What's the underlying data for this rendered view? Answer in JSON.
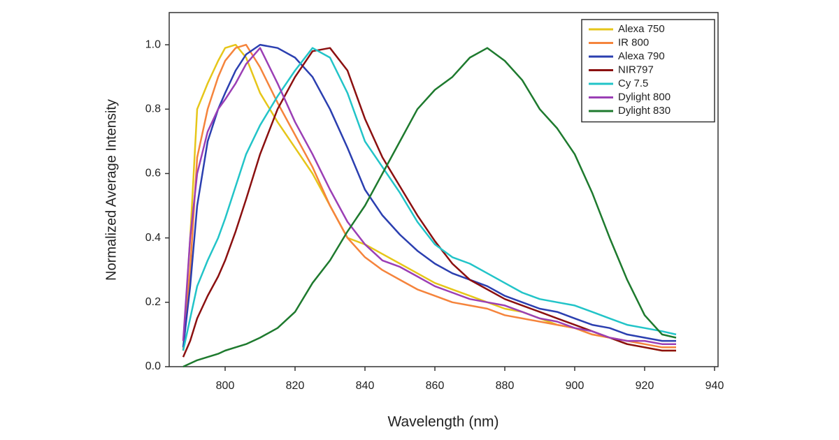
{
  "chart_data": {
    "type": "line",
    "xlabel": "Wavelength (nm)",
    "ylabel": "Normalized Average Intensity",
    "x": [
      788,
      790,
      792,
      795,
      798,
      800,
      803,
      806,
      810,
      815,
      820,
      825,
      830,
      835,
      840,
      845,
      850,
      855,
      860,
      865,
      870,
      875,
      880,
      885,
      890,
      895,
      900,
      905,
      910,
      915,
      920,
      925,
      929
    ],
    "xlim": [
      784,
      941
    ],
    "xticks": [
      800,
      820,
      840,
      860,
      880,
      900,
      920,
      940
    ],
    "ylim": [
      0,
      1.1
    ],
    "yticks": [
      {
        "value": 0,
        "label": "0.0"
      },
      0.2,
      0.4,
      0.6,
      0.8,
      {
        "value": 1,
        "label": "1.0"
      }
    ],
    "grid": false,
    "legend": "upper right",
    "series": [
      {
        "name": "Alexa 750",
        "color": "#e6c619",
        "values": [
          0.05,
          0.4,
          0.8,
          0.88,
          0.95,
          0.99,
          1.0,
          0.96,
          0.85,
          0.76,
          0.68,
          0.6,
          0.5,
          0.4,
          0.38,
          0.35,
          0.32,
          0.29,
          0.26,
          0.24,
          0.22,
          0.2,
          0.18,
          0.17,
          0.15,
          0.13,
          0.12,
          0.1,
          0.09,
          0.07,
          0.06,
          0.05,
          0.05
        ]
      },
      {
        "name": "IR 800",
        "color": "#f5843c",
        "values": [
          0.05,
          0.3,
          0.65,
          0.8,
          0.9,
          0.95,
          0.99,
          1.0,
          0.93,
          0.82,
          0.72,
          0.62,
          0.5,
          0.4,
          0.34,
          0.3,
          0.27,
          0.24,
          0.22,
          0.2,
          0.19,
          0.18,
          0.16,
          0.15,
          0.14,
          0.13,
          0.12,
          0.1,
          0.09,
          0.08,
          0.07,
          0.06,
          0.06
        ]
      },
      {
        "name": "Alexa 790",
        "color": "#2b3fb0",
        "values": [
          0.06,
          0.25,
          0.5,
          0.7,
          0.8,
          0.85,
          0.92,
          0.97,
          1.0,
          0.99,
          0.96,
          0.9,
          0.8,
          0.68,
          0.55,
          0.47,
          0.41,
          0.36,
          0.32,
          0.29,
          0.27,
          0.25,
          0.22,
          0.2,
          0.18,
          0.17,
          0.15,
          0.13,
          0.12,
          0.1,
          0.09,
          0.08,
          0.08
        ]
      },
      {
        "name": "NIR797",
        "color": "#8b1010",
        "values": [
          0.03,
          0.08,
          0.15,
          0.22,
          0.28,
          0.33,
          0.42,
          0.52,
          0.66,
          0.8,
          0.9,
          0.98,
          0.99,
          0.92,
          0.77,
          0.65,
          0.56,
          0.47,
          0.39,
          0.32,
          0.27,
          0.24,
          0.21,
          0.19,
          0.17,
          0.15,
          0.13,
          0.11,
          0.09,
          0.07,
          0.06,
          0.05,
          0.05
        ]
      },
      {
        "name": "Cy 7.5",
        "color": "#22c4c8",
        "values": [
          0.05,
          0.15,
          0.25,
          0.33,
          0.4,
          0.46,
          0.56,
          0.66,
          0.75,
          0.84,
          0.92,
          0.99,
          0.96,
          0.85,
          0.7,
          0.62,
          0.54,
          0.45,
          0.38,
          0.34,
          0.32,
          0.29,
          0.26,
          0.23,
          0.21,
          0.2,
          0.19,
          0.17,
          0.15,
          0.13,
          0.12,
          0.11,
          0.1
        ]
      },
      {
        "name": "Dylight 800",
        "color": "#9b3fb5",
        "values": [
          0.08,
          0.4,
          0.6,
          0.73,
          0.8,
          0.83,
          0.88,
          0.94,
          0.99,
          0.88,
          0.76,
          0.66,
          0.55,
          0.45,
          0.38,
          0.33,
          0.31,
          0.28,
          0.25,
          0.23,
          0.21,
          0.2,
          0.19,
          0.17,
          0.15,
          0.14,
          0.12,
          0.11,
          0.09,
          0.08,
          0.08,
          0.07,
          0.07
        ]
      },
      {
        "name": "Dylight 830",
        "color": "#1e7a2e",
        "values": [
          0.0,
          0.01,
          0.02,
          0.03,
          0.04,
          0.05,
          0.06,
          0.07,
          0.09,
          0.12,
          0.17,
          0.26,
          0.33,
          0.42,
          0.5,
          0.6,
          0.7,
          0.8,
          0.86,
          0.9,
          0.96,
          0.99,
          0.95,
          0.89,
          0.8,
          0.74,
          0.66,
          0.54,
          0.4,
          0.27,
          0.16,
          0.1,
          0.09
        ]
      }
    ]
  }
}
